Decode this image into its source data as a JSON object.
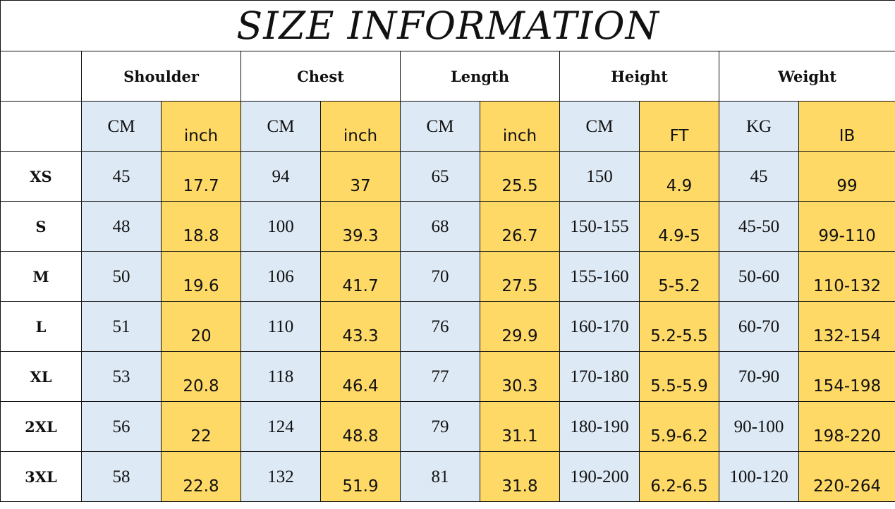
{
  "title": "SIZE INFORMATION",
  "groups": [
    {
      "label": "Shoulder",
      "units": [
        "CM",
        "inch"
      ]
    },
    {
      "label": "Chest",
      "units": [
        "CM",
        "inch"
      ]
    },
    {
      "label": "Length",
      "units": [
        "CM",
        "inch"
      ]
    },
    {
      "label": "Height",
      "units": [
        "CM",
        "FT"
      ]
    },
    {
      "label": "Weight",
      "units": [
        "KG",
        "IB"
      ]
    }
  ],
  "rows": [
    {
      "size": "XS",
      "values": [
        "45",
        "17.7",
        "94",
        "37",
        "65",
        "25.5",
        "150",
        "4.9",
        "45",
        "99"
      ]
    },
    {
      "size": "S",
      "values": [
        "48",
        "18.8",
        "100",
        "39.3",
        "68",
        "26.7",
        "150-155",
        "4.9-5",
        "45-50",
        "99-110"
      ]
    },
    {
      "size": "M",
      "values": [
        "50",
        "19.6",
        "106",
        "41.7",
        "70",
        "27.5",
        "155-160",
        "5-5.2",
        "50-60",
        "110-132"
      ]
    },
    {
      "size": "L",
      "values": [
        "51",
        "20",
        "110",
        "43.3",
        "76",
        "29.9",
        "160-170",
        "5.2-5.5",
        "60-70",
        "132-154"
      ]
    },
    {
      "size": "XL",
      "values": [
        "53",
        "20.8",
        "118",
        "46.4",
        "77",
        "30.3",
        "170-180",
        "5.5-5.9",
        "70-90",
        "154-198"
      ]
    },
    {
      "size": "2XL",
      "values": [
        "56",
        "22",
        "124",
        "48.8",
        "79",
        "31.1",
        "180-190",
        "5.9-6.2",
        "90-100",
        "198-220"
      ]
    },
    {
      "size": "3XL",
      "values": [
        "58",
        "22.8",
        "132",
        "51.9",
        "81",
        "31.8",
        "190-200",
        "6.2-6.5",
        "100-120",
        "220-264"
      ]
    }
  ],
  "colors": {
    "cm_cell": "#dde9f5",
    "imperial_cell": "#fed966",
    "border": "#111111"
  }
}
